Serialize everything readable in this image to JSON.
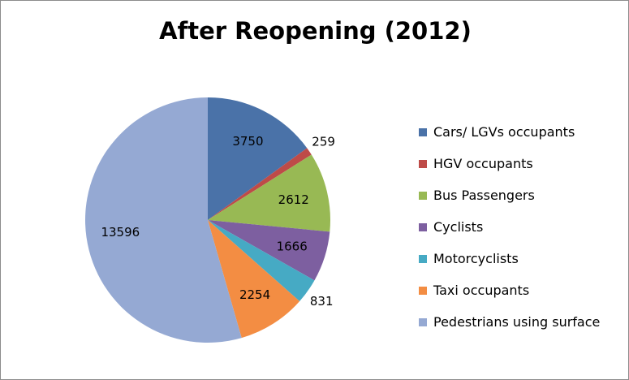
{
  "chart_data": {
    "type": "pie",
    "title": "After Reopening (2012)",
    "legend_position": "right",
    "start_angle": "top, clockwise",
    "series": [
      {
        "name": "Cars/ LGVs occupants",
        "value": 3750,
        "color": "#4A72A8",
        "label_position": "inside"
      },
      {
        "name": "HGV occupants",
        "value": 259,
        "color": "#BE4B48",
        "label_position": "outside"
      },
      {
        "name": "Bus Passengers",
        "value": 2612,
        "color": "#98B954",
        "label_position": "inside"
      },
      {
        "name": "Cyclists",
        "value": 1666,
        "color": "#7D5FA0",
        "label_position": "inside"
      },
      {
        "name": "Motorcyclists",
        "value": 831,
        "color": "#46AAC4",
        "label_position": "outside"
      },
      {
        "name": "Taxi occupants",
        "value": 2254,
        "color": "#F38D43",
        "label_position": "inside"
      },
      {
        "name": "Pedestrians using surface",
        "value": 13596,
        "color": "#95A9D3",
        "label_position": "inside"
      }
    ]
  }
}
